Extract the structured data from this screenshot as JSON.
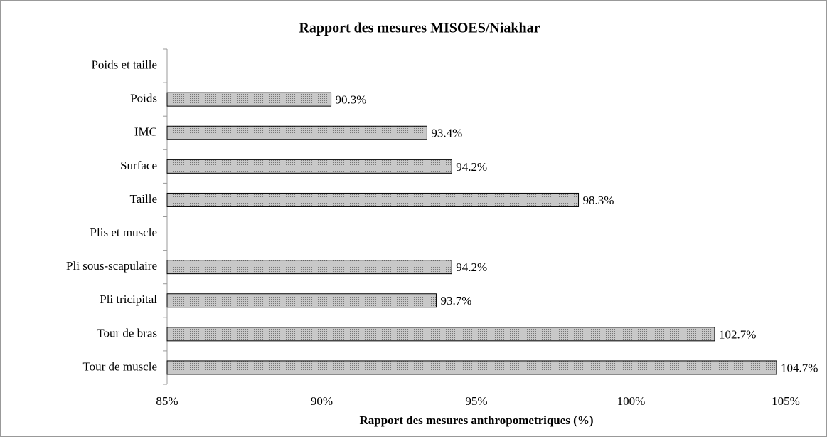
{
  "chart_data": {
    "type": "hbar",
    "title": "Rapport des mesures MISOES/Niakhar",
    "x_label": "Rapport des mesures anthropometriques (%)",
    "categories": [
      "Poids et taille",
      "Poids",
      "IMC",
      "Surface",
      "Taille",
      "Plis et muscle",
      "Pli sous-scapulaire",
      "Pli tricipital",
      "Tour de bras",
      "Tour de muscle"
    ],
    "values": [
      null,
      90.3,
      93.4,
      94.2,
      98.3,
      null,
      94.2,
      93.7,
      102.7,
      104.7
    ],
    "value_labels": [
      null,
      "90.3%",
      "93.4%",
      "94.2%",
      "98.3%",
      null,
      "94.2%",
      "93.7%",
      "102.7%",
      "104.7%"
    ],
    "color": "#b3b3b3",
    "xlim": [
      85,
      105
    ],
    "xticks": [
      {
        "value": 85,
        "label": "85%"
      },
      {
        "value": 90,
        "label": "90%"
      },
      {
        "value": 95,
        "label": "95%"
      },
      {
        "value": 100,
        "label": "100%"
      },
      {
        "value": 105,
        "label": "105%"
      }
    ],
    "grid": false
  }
}
